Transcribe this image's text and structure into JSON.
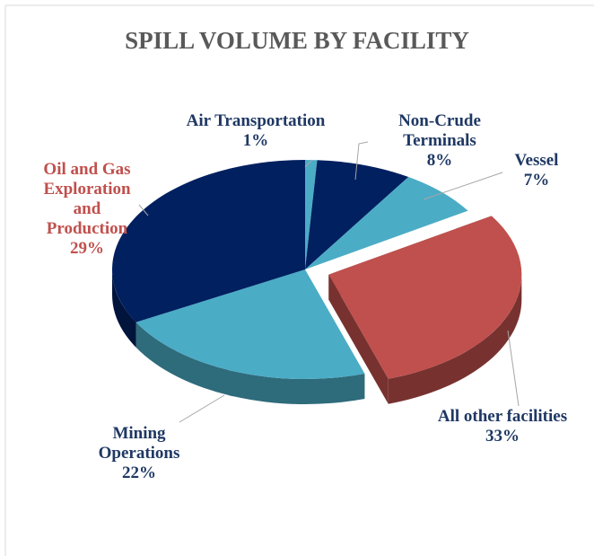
{
  "chart_data": {
    "type": "pie",
    "title": "SPILL VOLUME BY FACILITY",
    "categories": [
      "Air Transportation",
      "Non-Crude Terminals",
      "Vessel",
      "Oil and Gas Exploration and Production",
      "Mining Operations",
      "All other facilities"
    ],
    "values": [
      1,
      8,
      7,
      29,
      22,
      33
    ],
    "value_labels": [
      "1%",
      "8%",
      "7%",
      "29%",
      "22%",
      "33%"
    ],
    "colors": [
      "#4bacc6",
      "#002060",
      "#4bacc6",
      "#c0504d",
      "#4bacc6",
      "#002060"
    ]
  }
}
